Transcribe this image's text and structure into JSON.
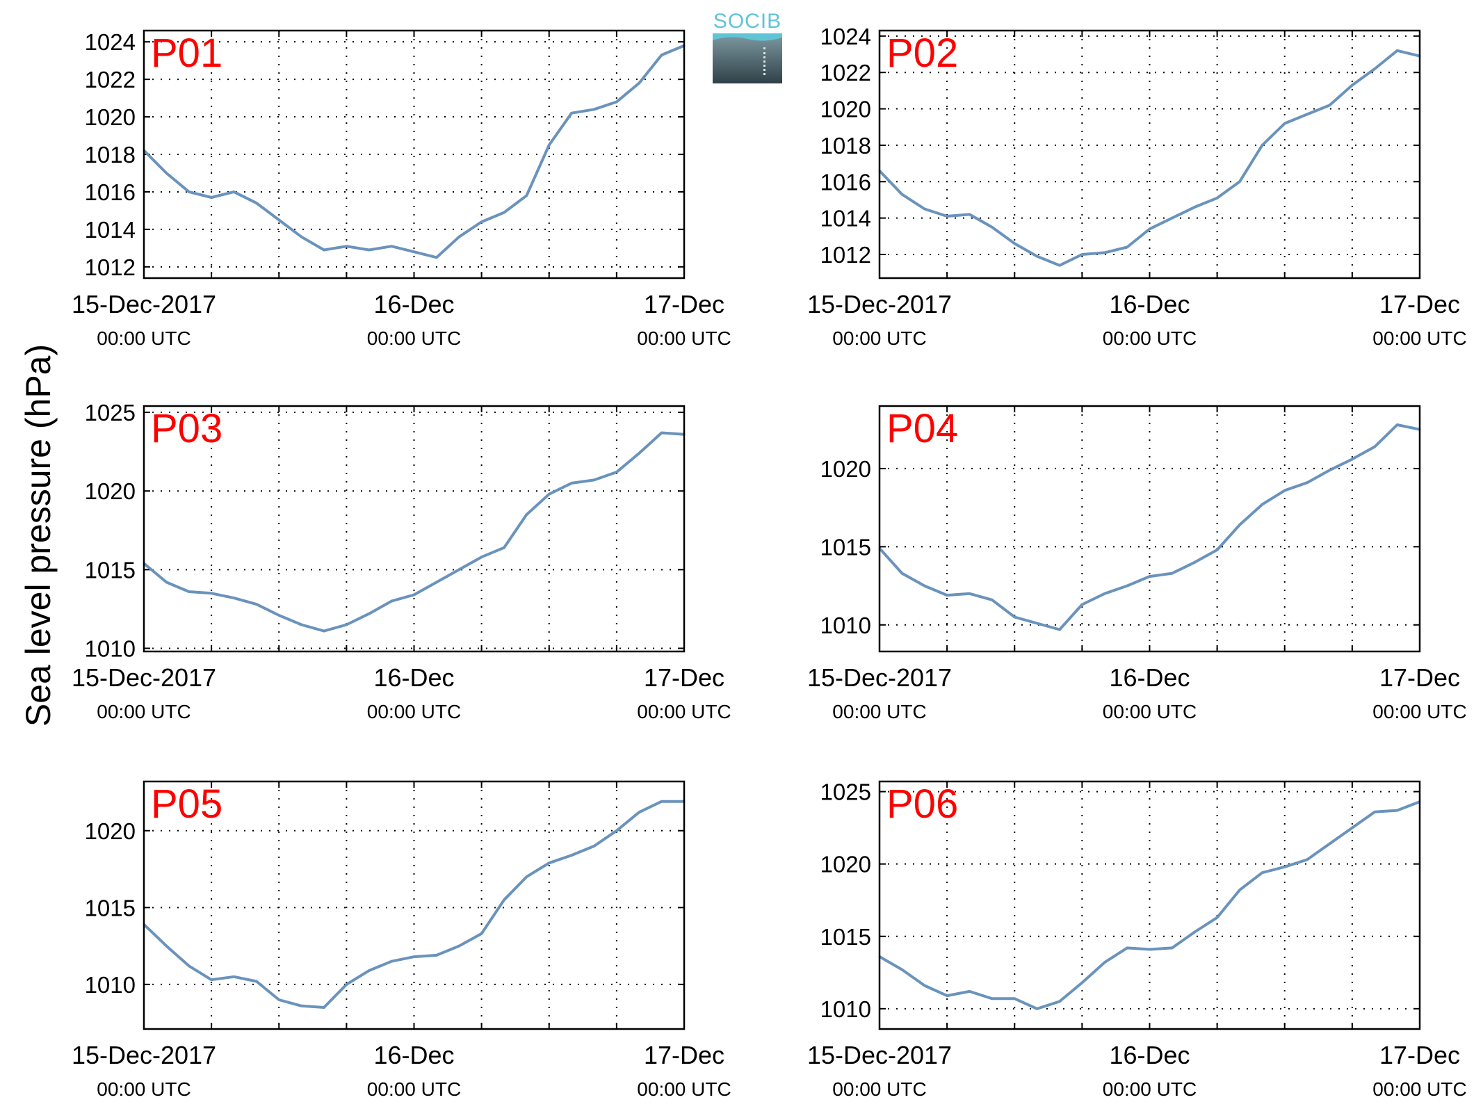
{
  "figure": {
    "ylabel": "Sea level pressure (hPa)",
    "logo_text": "SOCIB",
    "line_color": "#6a93bc",
    "station_label_color": "#ff0000"
  },
  "chart_data": [
    {
      "type": "line",
      "station": "P01",
      "x": [
        "2017-12-15 00:00",
        "2017-12-15 02:00",
        "2017-12-15 04:00",
        "2017-12-15 06:00",
        "2017-12-15 08:00",
        "2017-12-15 10:00",
        "2017-12-15 12:00",
        "2017-12-15 14:00",
        "2017-12-15 16:00",
        "2017-12-15 18:00",
        "2017-12-15 20:00",
        "2017-12-15 22:00",
        "2017-12-16 00:00",
        "2017-12-16 02:00",
        "2017-12-16 04:00",
        "2017-12-16 06:00",
        "2017-12-16 08:00",
        "2017-12-16 10:00",
        "2017-12-16 12:00",
        "2017-12-16 14:00",
        "2017-12-16 16:00",
        "2017-12-16 18:00",
        "2017-12-16 20:00",
        "2017-12-16 22:00",
        "2017-12-17 00:00"
      ],
      "values": [
        1018.2,
        1017.0,
        1016.0,
        1015.7,
        1016.0,
        1015.4,
        1014.5,
        1013.6,
        1012.9,
        1013.1,
        1012.9,
        1013.1,
        1012.8,
        1012.5,
        1013.6,
        1014.4,
        1014.9,
        1015.8,
        1018.5,
        1020.2,
        1020.4,
        1020.8,
        1021.8,
        1023.3,
        1023.8
      ],
      "yticks": [
        "1012",
        "1014",
        "1016",
        "1018",
        "1020",
        "1022",
        "1024"
      ],
      "ylim": [
        1011.4,
        1024.6
      ],
      "xticks": [
        {
          "label": "15-Dec-2017",
          "sub": "00:00 UTC"
        },
        {
          "label": "16-Dec",
          "sub": "00:00 UTC"
        },
        {
          "label": "17-Dec",
          "sub": "00:00 UTC"
        }
      ],
      "xlim": [
        "2017-12-15 00:00",
        "2017-12-17 00:00"
      ],
      "grid": true
    },
    {
      "type": "line",
      "station": "P02",
      "x": [
        "2017-12-15 00:00",
        "2017-12-15 02:00",
        "2017-12-15 04:00",
        "2017-12-15 06:00",
        "2017-12-15 08:00",
        "2017-12-15 10:00",
        "2017-12-15 12:00",
        "2017-12-15 14:00",
        "2017-12-15 16:00",
        "2017-12-15 18:00",
        "2017-12-15 20:00",
        "2017-12-15 22:00",
        "2017-12-16 00:00",
        "2017-12-16 02:00",
        "2017-12-16 04:00",
        "2017-12-16 06:00",
        "2017-12-16 08:00",
        "2017-12-16 10:00",
        "2017-12-16 12:00",
        "2017-12-16 14:00",
        "2017-12-16 16:00",
        "2017-12-16 18:00",
        "2017-12-16 20:00",
        "2017-12-16 22:00",
        "2017-12-17 00:00"
      ],
      "values": [
        1016.6,
        1015.3,
        1014.5,
        1014.1,
        1014.2,
        1013.5,
        1012.6,
        1011.9,
        1011.4,
        1012.0,
        1012.1,
        1012.4,
        1013.4,
        1014.0,
        1014.6,
        1015.1,
        1016.0,
        1018.0,
        1019.2,
        1019.7,
        1020.2,
        1021.3,
        1022.2,
        1023.2,
        1022.9
      ],
      "yticks": [
        "1012",
        "1014",
        "1016",
        "1018",
        "1020",
        "1022",
        "1024"
      ],
      "ylim": [
        1010.7,
        1024.3
      ],
      "xticks": [
        {
          "label": "15-Dec-2017",
          "sub": "00:00 UTC"
        },
        {
          "label": "16-Dec",
          "sub": "00:00 UTC"
        },
        {
          "label": "17-Dec",
          "sub": "00:00 UTC"
        }
      ],
      "xlim": [
        "2017-12-15 00:00",
        "2017-12-17 00:00"
      ],
      "grid": true
    },
    {
      "type": "line",
      "station": "P03",
      "x": [
        "2017-12-15 00:00",
        "2017-12-15 02:00",
        "2017-12-15 04:00",
        "2017-12-15 06:00",
        "2017-12-15 08:00",
        "2017-12-15 10:00",
        "2017-12-15 12:00",
        "2017-12-15 14:00",
        "2017-12-15 16:00",
        "2017-12-15 18:00",
        "2017-12-15 20:00",
        "2017-12-15 22:00",
        "2017-12-16 00:00",
        "2017-12-16 02:00",
        "2017-12-16 04:00",
        "2017-12-16 06:00",
        "2017-12-16 08:00",
        "2017-12-16 10:00",
        "2017-12-16 12:00",
        "2017-12-16 14:00",
        "2017-12-16 16:00",
        "2017-12-16 18:00",
        "2017-12-16 20:00",
        "2017-12-16 22:00",
        "2017-12-17 00:00"
      ],
      "values": [
        1015.4,
        1014.2,
        1013.6,
        1013.5,
        1013.2,
        1012.8,
        1012.1,
        1011.5,
        1011.1,
        1011.5,
        1012.2,
        1013.0,
        1013.4,
        1014.2,
        1015.0,
        1015.8,
        1016.4,
        1018.5,
        1019.8,
        1020.5,
        1020.7,
        1021.2,
        1022.4,
        1023.7,
        1023.6
      ],
      "yticks": [
        "1010",
        "1015",
        "1020",
        "1025"
      ],
      "ylim": [
        1009.8,
        1025.4
      ],
      "xticks": [
        {
          "label": "15-Dec-2017",
          "sub": "00:00 UTC"
        },
        {
          "label": "16-Dec",
          "sub": "00:00 UTC"
        },
        {
          "label": "17-Dec",
          "sub": "00:00 UTC"
        }
      ],
      "xlim": [
        "2017-12-15 00:00",
        "2017-12-17 00:00"
      ],
      "grid": true
    },
    {
      "type": "line",
      "station": "P04",
      "x": [
        "2017-12-15 00:00",
        "2017-12-15 02:00",
        "2017-12-15 04:00",
        "2017-12-15 06:00",
        "2017-12-15 08:00",
        "2017-12-15 10:00",
        "2017-12-15 12:00",
        "2017-12-15 14:00",
        "2017-12-15 16:00",
        "2017-12-15 18:00",
        "2017-12-15 20:00",
        "2017-12-15 22:00",
        "2017-12-16 00:00",
        "2017-12-16 02:00",
        "2017-12-16 04:00",
        "2017-12-16 06:00",
        "2017-12-16 08:00",
        "2017-12-16 10:00",
        "2017-12-16 12:00",
        "2017-12-16 14:00",
        "2017-12-16 16:00",
        "2017-12-16 18:00",
        "2017-12-16 20:00",
        "2017-12-16 22:00",
        "2017-12-17 00:00"
      ],
      "values": [
        1014.9,
        1013.3,
        1012.5,
        1011.9,
        1012.0,
        1011.6,
        1010.5,
        1010.1,
        1009.7,
        1011.3,
        1012.0,
        1012.5,
        1013.1,
        1013.3,
        1014.0,
        1014.8,
        1016.4,
        1017.7,
        1018.6,
        1019.1,
        1019.9,
        1020.6,
        1021.4,
        1022.8,
        1022.5
      ],
      "yticks": [
        "1010",
        "1015",
        "1020"
      ],
      "ylim": [
        1008.3,
        1024.0
      ],
      "xticks": [
        {
          "label": "15-Dec-2017",
          "sub": "00:00 UTC"
        },
        {
          "label": "16-Dec",
          "sub": "00:00 UTC"
        },
        {
          "label": "17-Dec",
          "sub": "00:00 UTC"
        }
      ],
      "xlim": [
        "2017-12-15 00:00",
        "2017-12-17 00:00"
      ],
      "grid": true
    },
    {
      "type": "line",
      "station": "P05",
      "x": [
        "2017-12-15 00:00",
        "2017-12-15 02:00",
        "2017-12-15 04:00",
        "2017-12-15 06:00",
        "2017-12-15 08:00",
        "2017-12-15 10:00",
        "2017-12-15 12:00",
        "2017-12-15 14:00",
        "2017-12-15 16:00",
        "2017-12-15 18:00",
        "2017-12-15 20:00",
        "2017-12-15 22:00",
        "2017-12-16 00:00",
        "2017-12-16 02:00",
        "2017-12-16 04:00",
        "2017-12-16 06:00",
        "2017-12-16 08:00",
        "2017-12-16 10:00",
        "2017-12-16 12:00",
        "2017-12-16 14:00",
        "2017-12-16 16:00",
        "2017-12-16 18:00",
        "2017-12-16 20:00",
        "2017-12-16 22:00",
        "2017-12-17 00:00"
      ],
      "values": [
        1013.9,
        1012.5,
        1011.2,
        1010.3,
        1010.5,
        1010.2,
        1009.0,
        1008.6,
        1008.5,
        1010.0,
        1010.9,
        1011.5,
        1011.8,
        1011.9,
        1012.5,
        1013.3,
        1015.5,
        1017.0,
        1017.9,
        1018.4,
        1019.0,
        1020.0,
        1021.2,
        1021.9,
        1021.9
      ],
      "yticks": [
        "1010",
        "1015",
        "1020"
      ],
      "ylim": [
        1007.1,
        1023.2
      ],
      "xticks": [
        {
          "label": "15-Dec-2017",
          "sub": "00:00 UTC"
        },
        {
          "label": "16-Dec",
          "sub": "00:00 UTC"
        },
        {
          "label": "17-Dec",
          "sub": "00:00 UTC"
        }
      ],
      "xlim": [
        "2017-12-15 00:00",
        "2017-12-17 00:00"
      ],
      "grid": true
    },
    {
      "type": "line",
      "station": "P06",
      "x": [
        "2017-12-15 00:00",
        "2017-12-15 02:00",
        "2017-12-15 04:00",
        "2017-12-15 06:00",
        "2017-12-15 08:00",
        "2017-12-15 10:00",
        "2017-12-15 12:00",
        "2017-12-15 14:00",
        "2017-12-15 16:00",
        "2017-12-15 18:00",
        "2017-12-15 20:00",
        "2017-12-15 22:00",
        "2017-12-16 00:00",
        "2017-12-16 02:00",
        "2017-12-16 04:00",
        "2017-12-16 06:00",
        "2017-12-16 08:00",
        "2017-12-16 10:00",
        "2017-12-16 12:00",
        "2017-12-16 14:00",
        "2017-12-16 16:00",
        "2017-12-16 18:00",
        "2017-12-16 20:00",
        "2017-12-16 22:00",
        "2017-12-17 00:00"
      ],
      "values": [
        1013.6,
        1012.7,
        1011.6,
        1010.9,
        1011.2,
        1010.7,
        1010.7,
        1010.0,
        1010.5,
        1011.8,
        1013.2,
        1014.2,
        1014.1,
        1014.2,
        1015.3,
        1016.3,
        1018.2,
        1019.4,
        1019.8,
        1020.3,
        1021.4,
        1022.5,
        1023.6,
        1023.7,
        1024.3
      ],
      "yticks": [
        "1010",
        "1015",
        "1020",
        "1025"
      ],
      "ylim": [
        1008.6,
        1025.7
      ],
      "xticks": [
        {
          "label": "15-Dec-2017",
          "sub": "00:00 UTC"
        },
        {
          "label": "16-Dec",
          "sub": "00:00 UTC"
        },
        {
          "label": "17-Dec",
          "sub": "00:00 UTC"
        }
      ],
      "xlim": [
        "2017-12-15 00:00",
        "2017-12-17 00:00"
      ],
      "grid": true
    }
  ]
}
